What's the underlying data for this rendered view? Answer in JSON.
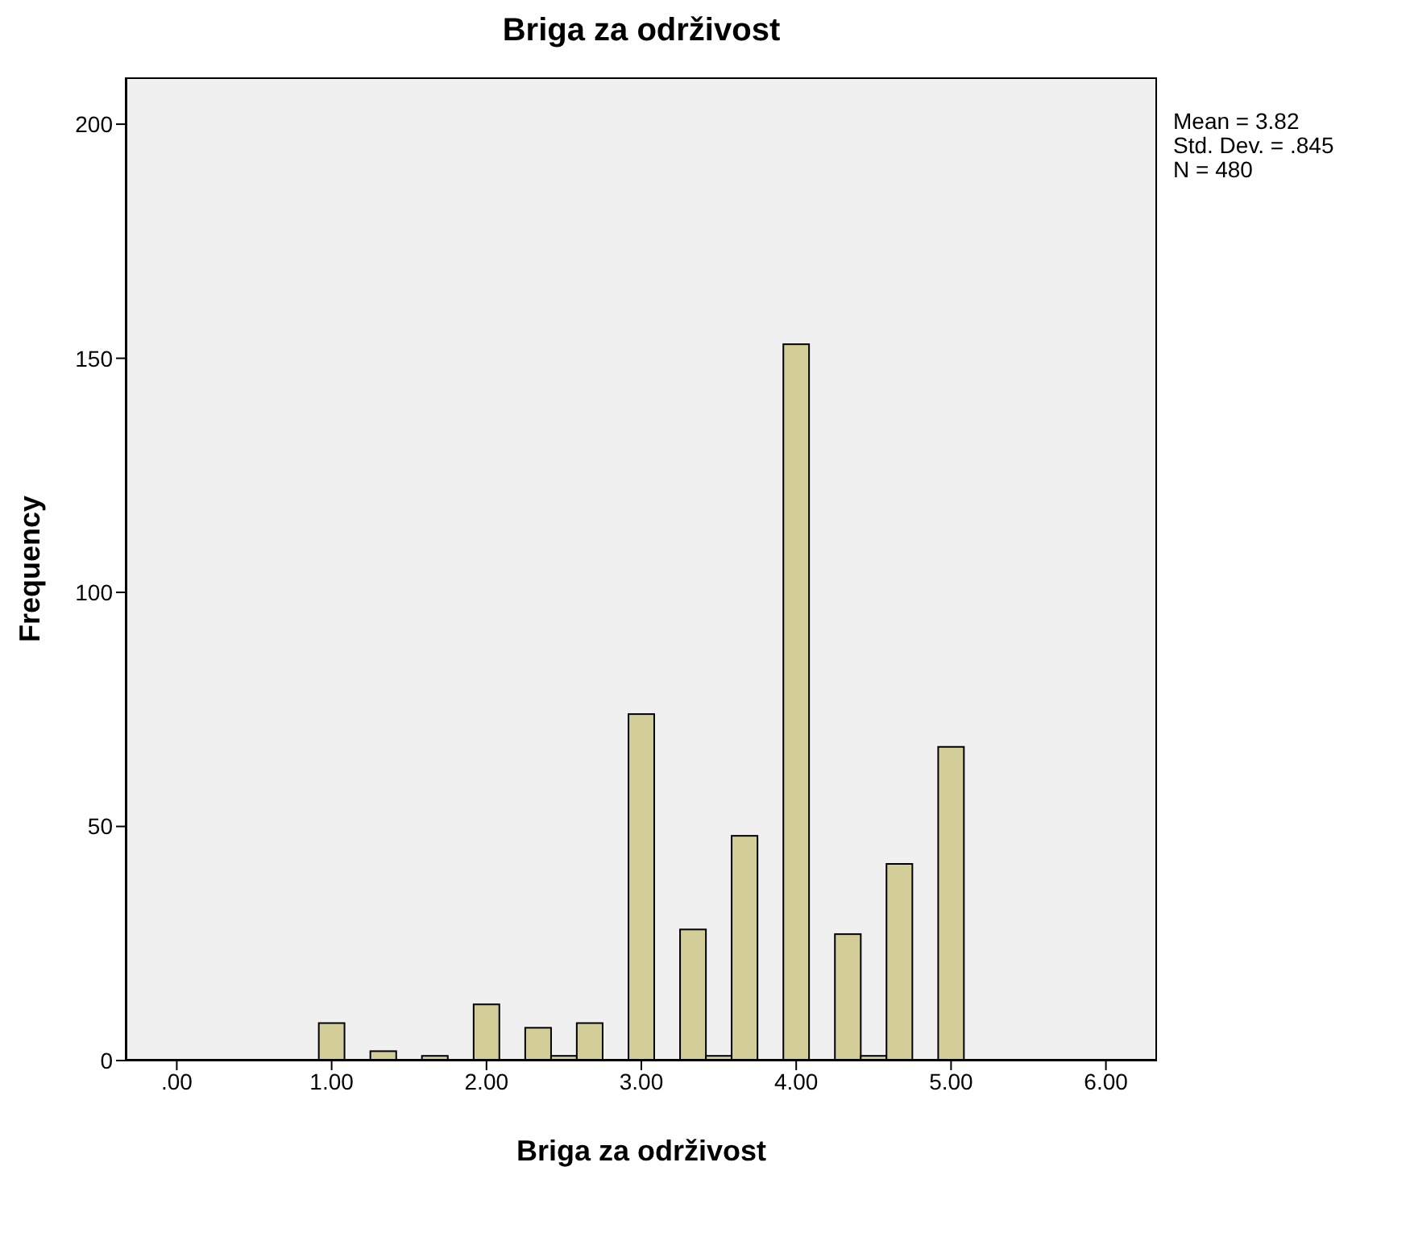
{
  "chart_data": {
    "type": "histogram",
    "title": "Briga za održivost",
    "xlabel": "Briga za održivost",
    "ylabel": "Frequency",
    "bins": [
      0.917,
      1.083,
      1.25,
      1.417,
      1.583,
      1.75,
      1.917,
      2.083,
      2.25,
      2.417,
      2.583,
      2.75,
      2.917,
      3.083,
      3.25,
      3.417,
      3.583,
      3.75,
      3.917,
      4.083,
      4.25,
      4.417,
      4.583,
      4.75,
      4.917,
      5.083
    ],
    "values": [
      8,
      0,
      2,
      0,
      1,
      0,
      12,
      0,
      7,
      1,
      8,
      0,
      74,
      0,
      28,
      1,
      48,
      0,
      153,
      0,
      27,
      1,
      42,
      0,
      67
    ],
    "color": "#d3ce97",
    "xlim": [
      -0.33,
      6.33
    ],
    "xticks": [
      {
        "value": 0,
        "label": ".00"
      },
      {
        "value": 1,
        "label": "1.00"
      },
      {
        "value": 2,
        "label": "2.00"
      },
      {
        "value": 3,
        "label": "3.00"
      },
      {
        "value": 4,
        "label": "4.00"
      },
      {
        "value": 5,
        "label": "5.00"
      },
      {
        "value": 6,
        "label": "6.00"
      }
    ],
    "ylim": [
      0,
      210
    ],
    "yticks": [
      0,
      50,
      100,
      150,
      200
    ],
    "annotations": [
      "Mean = 3.82",
      "Std. Dev. = .845",
      "N = 480"
    ],
    "grid": false
  }
}
